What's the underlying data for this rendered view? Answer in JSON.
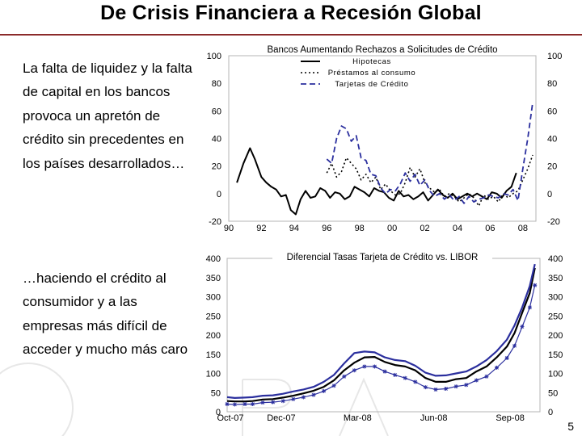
{
  "slide": {
    "title": "De Crisis Financiera a Recesión Global",
    "bullet_1": "La falta de liquidez y la falta de capital en los bancos provoca un apretón de crédito sin precedentes en los países desarrollados…",
    "bullet_2": "…haciendo el crédito al consumidor y a las empresas más difícil de acceder y mucho más caro",
    "page_number": "5",
    "accent_color": "#8b2a2a"
  },
  "chart_data": [
    {
      "type": "line",
      "title": "Bancos Aumentando Rechazos a Solicitudes de Crédito",
      "xlabel": "",
      "ylabel": "",
      "x_ticks": [
        "90",
        "92",
        "94",
        "96",
        "98",
        "00",
        "02",
        "04",
        "06",
        "08"
      ],
      "xlim": [
        1990,
        2008.8
      ],
      "y_ticks": [
        100,
        80,
        60,
        40,
        20,
        0,
        -20
      ],
      "ylim": [
        -20,
        100
      ],
      "grid": false,
      "legend": "top-center",
      "series": [
        {
          "name": "Hipotecas",
          "style": "solid",
          "color": "#000000",
          "points": [
            [
              1990.5,
              8
            ],
            [
              1990.9,
              22
            ],
            [
              1991.3,
              33
            ],
            [
              1991.6,
              25
            ],
            [
              1992.0,
              12
            ],
            [
              1992.3,
              8
            ],
            [
              1992.6,
              5
            ],
            [
              1992.9,
              3
            ],
            [
              1993.2,
              -2
            ],
            [
              1993.5,
              -1
            ],
            [
              1993.8,
              -12
            ],
            [
              1994.1,
              -15
            ],
            [
              1994.4,
              -4
            ],
            [
              1994.7,
              2
            ],
            [
              1995.0,
              -3
            ],
            [
              1995.3,
              -2
            ],
            [
              1995.6,
              4
            ],
            [
              1995.9,
              2
            ],
            [
              1996.2,
              -3
            ],
            [
              1996.5,
              1
            ],
            [
              1996.8,
              0
            ],
            [
              1997.1,
              -4
            ],
            [
              1997.4,
              -2
            ],
            [
              1997.7,
              5
            ],
            [
              1998.0,
              3
            ],
            [
              1998.3,
              1
            ],
            [
              1998.6,
              -2
            ],
            [
              1998.9,
              4
            ],
            [
              1999.2,
              2
            ],
            [
              1999.5,
              1
            ],
            [
              1999.8,
              -3
            ],
            [
              2000.1,
              -5
            ],
            [
              2000.4,
              2
            ],
            [
              2000.7,
              -2
            ],
            [
              2001.0,
              -1
            ],
            [
              2001.3,
              -4
            ],
            [
              2001.6,
              -2
            ],
            [
              2001.9,
              1
            ],
            [
              2002.2,
              -5
            ],
            [
              2002.5,
              -1
            ],
            [
              2002.8,
              3
            ],
            [
              2003.1,
              -1
            ],
            [
              2003.4,
              -3
            ],
            [
              2003.7,
              0
            ],
            [
              2004.0,
              -4
            ],
            [
              2004.3,
              -2
            ],
            [
              2004.6,
              0
            ],
            [
              2004.9,
              -2
            ],
            [
              2005.2,
              0
            ],
            [
              2005.5,
              -2
            ],
            [
              2005.8,
              -4
            ],
            [
              2006.1,
              1
            ],
            [
              2006.4,
              0
            ],
            [
              2006.7,
              -3
            ],
            [
              2007.0,
              2
            ],
            [
              2007.3,
              5
            ],
            [
              2007.6,
              15
            ]
          ]
        },
        {
          "name": "Préstamos al consumo",
          "style": "dotted",
          "color": "#000000",
          "points": [
            [
              1996.0,
              15
            ],
            [
              1996.3,
              22
            ],
            [
              1996.6,
              12
            ],
            [
              1996.9,
              16
            ],
            [
              1997.2,
              26
            ],
            [
              1997.5,
              22
            ],
            [
              1997.8,
              18
            ],
            [
              1998.1,
              10
            ],
            [
              1998.4,
              14
            ],
            [
              1998.7,
              8
            ],
            [
              1999.0,
              12
            ],
            [
              1999.3,
              3
            ],
            [
              1999.6,
              7
            ],
            [
              1999.9,
              2
            ],
            [
              2000.2,
              -1
            ],
            [
              2000.5,
              0
            ],
            [
              2000.8,
              8
            ],
            [
              2001.1,
              19
            ],
            [
              2001.4,
              12
            ],
            [
              2001.7,
              18
            ],
            [
              2002.0,
              8
            ],
            [
              2002.3,
              4
            ],
            [
              2002.6,
              1
            ],
            [
              2002.9,
              3
            ],
            [
              2003.2,
              -2
            ],
            [
              2003.5,
              0
            ],
            [
              2003.8,
              -2
            ],
            [
              2004.1,
              -6
            ],
            [
              2004.4,
              -3
            ],
            [
              2004.7,
              0
            ],
            [
              2005.0,
              -3
            ],
            [
              2005.3,
              -9
            ],
            [
              2005.6,
              -1
            ],
            [
              2005.9,
              -4
            ],
            [
              2006.2,
              -2
            ],
            [
              2006.5,
              -6
            ],
            [
              2006.8,
              0
            ],
            [
              2007.1,
              -3
            ],
            [
              2007.4,
              0
            ],
            [
              2007.7,
              2
            ],
            [
              2008.0,
              10
            ],
            [
              2008.3,
              18
            ],
            [
              2008.6,
              28
            ]
          ]
        },
        {
          "name": "Tarjetas de Crédito",
          "style": "dashed",
          "color": "#2b2f9e",
          "points": [
            [
              1996.0,
              25
            ],
            [
              1996.3,
              22
            ],
            [
              1996.6,
              40
            ],
            [
              1996.9,
              49
            ],
            [
              1997.2,
              47
            ],
            [
              1997.5,
              38
            ],
            [
              1997.8,
              42
            ],
            [
              1998.1,
              26
            ],
            [
              1998.4,
              24
            ],
            [
              1998.7,
              14
            ],
            [
              1999.0,
              13
            ],
            [
              1999.3,
              4
            ],
            [
              1999.6,
              0
            ],
            [
              1999.9,
              3
            ],
            [
              2000.2,
              2
            ],
            [
              2000.5,
              7
            ],
            [
              2000.8,
              15
            ],
            [
              2001.1,
              9
            ],
            [
              2001.4,
              14
            ],
            [
              2001.7,
              6
            ],
            [
              2002.0,
              10
            ],
            [
              2002.3,
              2
            ],
            [
              2002.6,
              -2
            ],
            [
              2002.9,
              0
            ],
            [
              2003.2,
              -4
            ],
            [
              2003.5,
              -1
            ],
            [
              2003.8,
              -5
            ],
            [
              2004.1,
              -2
            ],
            [
              2004.4,
              -7
            ],
            [
              2004.7,
              -2
            ],
            [
              2005.0,
              -6
            ],
            [
              2005.3,
              -4
            ],
            [
              2005.6,
              -3
            ],
            [
              2005.9,
              -1
            ],
            [
              2006.2,
              -2
            ],
            [
              2006.5,
              -3
            ],
            [
              2006.8,
              0
            ],
            [
              2007.1,
              -1
            ],
            [
              2007.4,
              3
            ],
            [
              2007.7,
              -5
            ],
            [
              2008.0,
              18
            ],
            [
              2008.3,
              40
            ],
            [
              2008.6,
              66
            ]
          ]
        }
      ]
    },
    {
      "type": "line",
      "title": "Diferencial Tasas Tarjeta de Crédito vs. LIBOR",
      "xlabel": "",
      "ylabel": "",
      "x_ticks": [
        "Oct-07",
        "Dec-07",
        "Mar-08",
        "Jun-08",
        "Sep-08"
      ],
      "x_tick_positions": [
        0,
        2,
        5,
        8,
        11
      ],
      "xlim": [
        0,
        12.3
      ],
      "y_ticks": [
        400,
        350,
        300,
        250,
        200,
        150,
        100,
        50,
        0
      ],
      "ylim": [
        0,
        400
      ],
      "grid": false,
      "series": [
        {
          "style": "solid",
          "color": "#000000",
          "points": [
            [
              0,
              28
            ],
            [
              0.3,
              27
            ],
            [
              0.7,
              27
            ],
            [
              1.0,
              28
            ],
            [
              1.4,
              32
            ],
            [
              1.8,
              33
            ],
            [
              2.2,
              37
            ],
            [
              2.6,
              42
            ],
            [
              3.0,
              48
            ],
            [
              3.4,
              55
            ],
            [
              3.8,
              65
            ],
            [
              4.2,
              82
            ],
            [
              4.6,
              108
            ],
            [
              5.0,
              128
            ],
            [
              5.4,
              142
            ],
            [
              5.8,
              143
            ],
            [
              6.2,
              130
            ],
            [
              6.6,
              122
            ],
            [
              7.0,
              118
            ],
            [
              7.4,
              108
            ],
            [
              7.8,
              88
            ],
            [
              8.2,
              78
            ],
            [
              8.6,
              78
            ],
            [
              9.0,
              85
            ],
            [
              9.4,
              88
            ],
            [
              9.8,
              105
            ],
            [
              10.2,
              118
            ],
            [
              10.6,
              142
            ],
            [
              11.0,
              170
            ],
            [
              11.3,
              205
            ],
            [
              11.6,
              258
            ],
            [
              11.9,
              310
            ],
            [
              12.1,
              375
            ]
          ]
        },
        {
          "style": "solid",
          "color": "#2b2f9e",
          "points": [
            [
              0,
              38
            ],
            [
              0.3,
              36
            ],
            [
              0.7,
              37
            ],
            [
              1.0,
              38
            ],
            [
              1.4,
              42
            ],
            [
              1.8,
              43
            ],
            [
              2.2,
              47
            ],
            [
              2.6,
              53
            ],
            [
              3.0,
              58
            ],
            [
              3.4,
              65
            ],
            [
              3.8,
              78
            ],
            [
              4.2,
              96
            ],
            [
              4.6,
              126
            ],
            [
              5.0,
              153
            ],
            [
              5.4,
              157
            ],
            [
              5.8,
              155
            ],
            [
              6.2,
              142
            ],
            [
              6.6,
              135
            ],
            [
              7.0,
              132
            ],
            [
              7.4,
              120
            ],
            [
              7.8,
              102
            ],
            [
              8.2,
              94
            ],
            [
              8.6,
              95
            ],
            [
              9.0,
              100
            ],
            [
              9.4,
              105
            ],
            [
              9.8,
              118
            ],
            [
              10.2,
              135
            ],
            [
              10.6,
              158
            ],
            [
              11.0,
              188
            ],
            [
              11.3,
              225
            ],
            [
              11.6,
              272
            ],
            [
              11.9,
              328
            ],
            [
              12.1,
              385
            ]
          ]
        },
        {
          "style": "starred",
          "color": "#2b2f9e",
          "points": [
            [
              0,
              20
            ],
            [
              0.3,
              19
            ],
            [
              0.7,
              20
            ],
            [
              1.0,
              20
            ],
            [
              1.4,
              24
            ],
            [
              1.8,
              25
            ],
            [
              2.2,
              28
            ],
            [
              2.6,
              33
            ],
            [
              3.0,
              38
            ],
            [
              3.4,
              44
            ],
            [
              3.8,
              54
            ],
            [
              4.2,
              68
            ],
            [
              4.6,
              92
            ],
            [
              5.0,
              108
            ],
            [
              5.4,
              118
            ],
            [
              5.8,
              118
            ],
            [
              6.2,
              105
            ],
            [
              6.6,
              96
            ],
            [
              7.0,
              88
            ],
            [
              7.4,
              78
            ],
            [
              7.8,
              64
            ],
            [
              8.2,
              58
            ],
            [
              8.6,
              60
            ],
            [
              9.0,
              66
            ],
            [
              9.4,
              70
            ],
            [
              9.8,
              82
            ],
            [
              10.2,
              92
            ],
            [
              10.6,
              115
            ],
            [
              11.0,
              140
            ],
            [
              11.3,
              172
            ],
            [
              11.6,
              222
            ],
            [
              11.9,
              272
            ],
            [
              12.1,
              330
            ]
          ]
        }
      ]
    }
  ]
}
